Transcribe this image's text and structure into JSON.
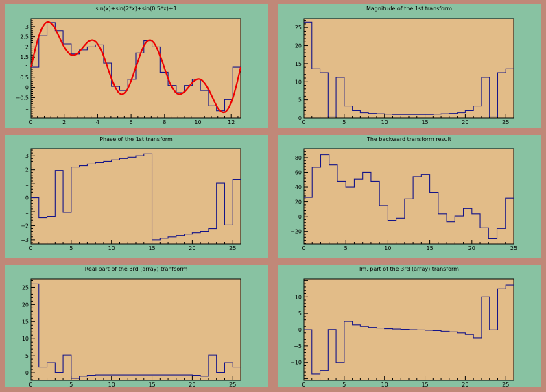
{
  "chart_data": [
    {
      "id": "p1",
      "type": "line",
      "title": "sin(x)+sin(2*x)+sin(0.5*x)+1",
      "xlim": [
        0,
        12.566
      ],
      "ylim": [
        -1.5,
        3.4
      ],
      "xticks": [
        0,
        2,
        4,
        6,
        8,
        10,
        12
      ],
      "yticks": [
        -1,
        -0.5,
        0,
        0.5,
        1,
        1.5,
        2,
        2.5,
        3
      ],
      "series": [
        {
          "kind": "histogram",
          "x_edges": [
            0,
            0.4833,
            0.9666,
            1.45,
            1.9333,
            2.4166,
            2.9,
            3.3833,
            3.8666,
            4.35,
            4.8333,
            5.3166,
            5.8,
            6.2833,
            6.7666,
            7.25,
            7.7332,
            8.2165,
            8.6999,
            9.1832,
            9.6665,
            10.1499,
            10.6332,
            11.1165,
            11.5998,
            12.0832,
            12.5665
          ],
          "values": [
            1.0,
            2.55,
            3.2,
            2.8,
            2.15,
            1.65,
            1.85,
            2.0,
            2.1,
            1.2,
            0.05,
            -0.15,
            0.4,
            1.7,
            2.3,
            2.0,
            0.75,
            0.1,
            -0.25,
            0.1,
            0.4,
            -0.15,
            -0.9,
            -1.15,
            -0.6,
            1.0
          ]
        },
        {
          "kind": "function",
          "expression": "sin(x)+sin(2*x)+sin(0.5*x)+1",
          "samples": 300
        }
      ]
    },
    {
      "id": "p2",
      "type": "line",
      "title": "Magnitude of the 1st transform",
      "xlim": [
        0,
        26
      ],
      "ylim": [
        0,
        27.5
      ],
      "xticks": [
        0,
        5,
        10,
        15,
        20,
        25
      ],
      "yticks": [
        0,
        5,
        10,
        15,
        20,
        25
      ],
      "series": [
        {
          "kind": "histogram",
          "x_edges": [
            0,
            1,
            2,
            3,
            4,
            5,
            6,
            7,
            8,
            9,
            10,
            11,
            12,
            13,
            14,
            15,
            16,
            17,
            18,
            19,
            20,
            21,
            22,
            23,
            24,
            25,
            26
          ],
          "values": [
            26.5,
            13.6,
            12.5,
            0.3,
            11.2,
            3.3,
            2.0,
            1.4,
            1.2,
            1.1,
            1.0,
            0.9,
            0.9,
            0.9,
            0.9,
            0.9,
            1.0,
            1.1,
            1.2,
            1.4,
            2.0,
            3.3,
            11.2,
            0.3,
            12.5,
            13.6
          ]
        }
      ]
    },
    {
      "id": "p3",
      "type": "line",
      "title": "Phase of the 1st transform",
      "xlim": [
        0,
        26
      ],
      "ylim": [
        -3.3,
        3.5
      ],
      "xticks": [
        0,
        5,
        10,
        15,
        20,
        25
      ],
      "yticks": [
        -3,
        -2,
        -1,
        0,
        1,
        2,
        3
      ],
      "series": [
        {
          "kind": "histogram",
          "x_edges": [
            0,
            1,
            2,
            3,
            4,
            5,
            6,
            7,
            8,
            9,
            10,
            11,
            12,
            13,
            14,
            15,
            16,
            17,
            18,
            19,
            20,
            21,
            22,
            23,
            24,
            25,
            26
          ],
          "values": [
            0.0,
            -1.42,
            -1.32,
            1.95,
            -1.05,
            2.2,
            2.3,
            2.4,
            2.5,
            2.6,
            2.7,
            2.8,
            2.9,
            3.0,
            3.14,
            -3.0,
            -2.9,
            -2.8,
            -2.7,
            -2.6,
            -2.5,
            -2.4,
            -2.2,
            1.05,
            -1.95,
            1.32
          ]
        }
      ]
    },
    {
      "id": "p4",
      "type": "line",
      "title": "The backward transform result",
      "xlim": [
        0,
        25
      ],
      "ylim": [
        -37,
        92
      ],
      "xticks": [
        0,
        5,
        10,
        15,
        20,
        25
      ],
      "yticks": [
        -20,
        0,
        20,
        40,
        60,
        80
      ],
      "series": [
        {
          "kind": "histogram",
          "x_edges": [
            0,
            1,
            2,
            3,
            4,
            5,
            6,
            7,
            8,
            9,
            10,
            11,
            12,
            13,
            14,
            15,
            16,
            17,
            18,
            19,
            20,
            21,
            22,
            23,
            24,
            25
          ],
          "values": [
            26,
            67,
            84,
            70,
            48,
            40,
            51,
            60,
            48,
            15,
            -5,
            -2,
            24,
            54,
            57,
            33,
            4,
            -7,
            1,
            11,
            4,
            -15,
            -30,
            -16,
            25
          ]
        }
      ]
    },
    {
      "id": "p5",
      "type": "line",
      "title": "Real part of the 3rd (array) tranfsorm",
      "xlim": [
        0,
        26
      ],
      "ylim": [
        -2.2,
        27.5
      ],
      "xticks": [
        0,
        5,
        10,
        15,
        20,
        25
      ],
      "yticks": [
        0,
        5,
        10,
        15,
        20,
        25
      ],
      "series": [
        {
          "kind": "histogram",
          "x_edges": [
            0,
            1,
            2,
            3,
            4,
            5,
            6,
            7,
            8,
            9,
            10,
            11,
            12,
            13,
            14,
            15,
            16,
            17,
            18,
            19,
            20,
            21,
            22,
            23,
            24,
            25,
            26
          ],
          "values": [
            26.0,
            1.7,
            3.0,
            0.1,
            5.2,
            -1.6,
            -0.95,
            -0.7,
            -0.6,
            -0.6,
            -0.6,
            -0.6,
            -0.6,
            -0.6,
            -0.6,
            -0.6,
            -0.6,
            -0.6,
            -0.6,
            -0.6,
            -0.7,
            -0.95,
            5.2,
            0.1,
            3.0,
            1.7
          ]
        }
      ]
    },
    {
      "id": "p6",
      "type": "line",
      "title": "Im. part of the 3rd (array) transform",
      "xlim": [
        0,
        26
      ],
      "ylim": [
        -15.5,
        15.5
      ],
      "xticks": [
        0,
        5,
        10,
        15,
        20,
        25
      ],
      "yticks": [
        -10,
        -5,
        0,
        5,
        10
      ],
      "series": [
        {
          "kind": "histogram",
          "x_edges": [
            0,
            1,
            2,
            3,
            4,
            5,
            6,
            7,
            8,
            9,
            10,
            11,
            12,
            13,
            14,
            15,
            16,
            17,
            18,
            19,
            20,
            21,
            22,
            23,
            24,
            25,
            26
          ],
          "values": [
            0.0,
            -13.6,
            -12.5,
            0.05,
            -10.0,
            2.5,
            1.5,
            1.0,
            0.7,
            0.5,
            0.3,
            0.2,
            0.1,
            0.0,
            -0.1,
            -0.2,
            -0.3,
            -0.5,
            -0.7,
            -1.0,
            -1.5,
            -2.5,
            10.0,
            -0.05,
            12.5,
            13.6
          ]
        }
      ]
    }
  ]
}
